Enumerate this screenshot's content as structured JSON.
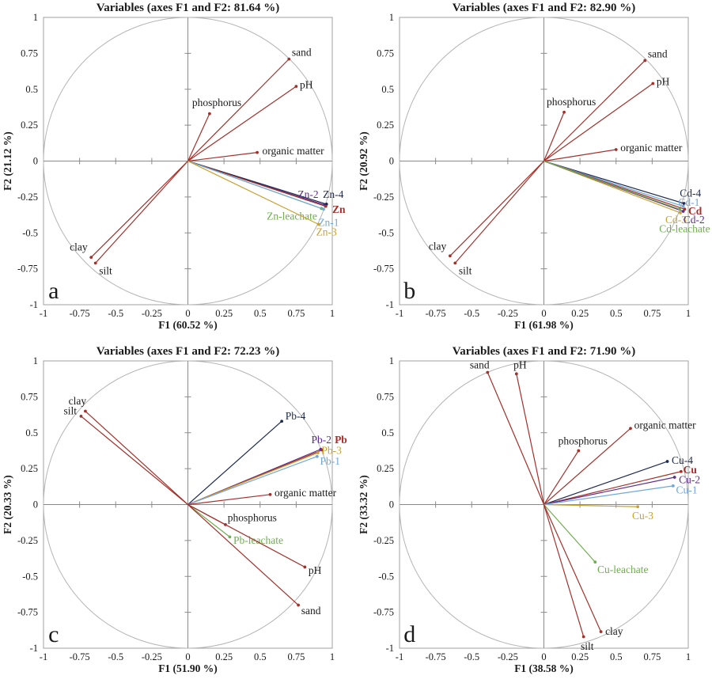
{
  "figure": {
    "description": "Four PCA variable correlation-circle plots (panels a-d) for Zn, Cd, Pb and Cu soil fractions",
    "panel_letters": [
      "a",
      "b",
      "c",
      "d"
    ]
  },
  "palette": {
    "red": "#a5302a",
    "navy": "#1c2951",
    "purple": "#5f2d8c",
    "lightblue": "#6fa8dc",
    "gold": "#c9a22e",
    "green": "#6fad4f",
    "text": "#1a1a1a",
    "circle": "#b5b5b5",
    "axis": "#8a8a8a",
    "border": "#a0a0a0"
  },
  "axis": {
    "range": [
      -1,
      1
    ],
    "ticks": [
      -1,
      -0.75,
      -0.5,
      -0.25,
      0,
      0.25,
      0.5,
      0.75,
      1
    ]
  },
  "chart_data": [
    {
      "type": "scatter",
      "panel": "a",
      "title": "Variables (axes F1 and F2: 81.64 %)",
      "xlabel": "F1 (60.52 %)",
      "ylabel": "F2 (21.12 %)",
      "xlim": [
        -1,
        1
      ],
      "ylim": [
        -1,
        1
      ],
      "vectors": [
        {
          "label": "sand",
          "x": 0.7,
          "y": 0.71,
          "color": "red",
          "tcolor": "text",
          "lx": 0.72,
          "ly": 0.755,
          "anchor": "start"
        },
        {
          "label": "pH",
          "x": 0.75,
          "y": 0.52,
          "color": "red",
          "tcolor": "text",
          "lx": 0.775,
          "ly": 0.53,
          "anchor": "start"
        },
        {
          "label": "phosphorus",
          "x": 0.15,
          "y": 0.33,
          "color": "red",
          "tcolor": "text",
          "lx": 0.2,
          "ly": 0.405,
          "anchor": "middle"
        },
        {
          "label": "organic matter",
          "x": 0.48,
          "y": 0.06,
          "color": "red",
          "tcolor": "text",
          "lx": 0.515,
          "ly": 0.07,
          "anchor": "start"
        },
        {
          "label": "clay",
          "x": -0.67,
          "y": -0.67,
          "color": "red",
          "tcolor": "text",
          "lx": -0.695,
          "ly": -0.6,
          "anchor": "end"
        },
        {
          "label": "silt",
          "x": -0.64,
          "y": -0.71,
          "color": "red",
          "tcolor": "text",
          "lx": -0.615,
          "ly": -0.765,
          "anchor": "start"
        },
        {
          "label": "Zn-2",
          "x": 0.945,
          "y": -0.305,
          "color": "purple",
          "lx": 0.905,
          "ly": -0.235,
          "anchor": "end"
        },
        {
          "label": "Zn-4",
          "x": 0.96,
          "y": -0.3,
          "color": "navy",
          "lx": 0.935,
          "ly": -0.235,
          "anchor": "start"
        },
        {
          "label": "Zn",
          "x": 0.955,
          "y": -0.315,
          "color": "red",
          "bold": true,
          "lx": 1.0,
          "ly": -0.34,
          "anchor": "start"
        },
        {
          "label": "Zn-leachate",
          "x": 0.925,
          "y": -0.33,
          "color": "green",
          "lx": 0.895,
          "ly": -0.385,
          "anchor": "end"
        },
        {
          "label": "Zn-1",
          "x": 0.94,
          "y": -0.335,
          "color": "lightblue",
          "lx": 0.975,
          "ly": -0.43,
          "anchor": "middle"
        },
        {
          "label": "Zn-3",
          "x": 0.905,
          "y": -0.44,
          "color": "gold",
          "lx": 0.96,
          "ly": -0.495,
          "anchor": "middle"
        }
      ]
    },
    {
      "type": "scatter",
      "panel": "b",
      "title": "Variables (axes F1 and F2: 82.90 %)",
      "xlabel": "F1 (61.98 %)",
      "ylabel": "F2 (20.92 %)",
      "xlim": [
        -1,
        1
      ],
      "ylim": [
        -1,
        1
      ],
      "vectors": [
        {
          "label": "sand",
          "x": 0.7,
          "y": 0.7,
          "color": "red",
          "tcolor": "text",
          "lx": 0.72,
          "ly": 0.745,
          "anchor": "start"
        },
        {
          "label": "pH",
          "x": 0.755,
          "y": 0.54,
          "color": "red",
          "tcolor": "text",
          "lx": 0.78,
          "ly": 0.55,
          "anchor": "start"
        },
        {
          "label": "phosphorus",
          "x": 0.14,
          "y": 0.34,
          "color": "red",
          "tcolor": "text",
          "lx": 0.19,
          "ly": 0.41,
          "anchor": "middle"
        },
        {
          "label": "organic matter",
          "x": 0.5,
          "y": 0.08,
          "color": "red",
          "tcolor": "text",
          "lx": 0.53,
          "ly": 0.09,
          "anchor": "start"
        },
        {
          "label": "clay",
          "x": -0.65,
          "y": -0.66,
          "color": "red",
          "tcolor": "text",
          "lx": -0.675,
          "ly": -0.595,
          "anchor": "end"
        },
        {
          "label": "silt",
          "x": -0.615,
          "y": -0.71,
          "color": "red",
          "tcolor": "text",
          "lx": -0.59,
          "ly": -0.765,
          "anchor": "start"
        },
        {
          "label": "Cd-4",
          "x": 0.97,
          "y": -0.295,
          "color": "navy",
          "lx": 1.015,
          "ly": -0.225,
          "anchor": "middle"
        },
        {
          "label": "Cd-1",
          "x": 0.965,
          "y": -0.315,
          "color": "lightblue",
          "lx": 1.005,
          "ly": -0.29,
          "anchor": "middle"
        },
        {
          "label": "Cd",
          "x": 0.975,
          "y": -0.335,
          "color": "red",
          "bold": true,
          "lx": 1.0,
          "ly": -0.35,
          "anchor": "start"
        },
        {
          "label": "Cd-3",
          "x": 0.945,
          "y": -0.36,
          "color": "gold",
          "lx": 0.915,
          "ly": -0.41,
          "anchor": "middle"
        },
        {
          "label": "Cd-2",
          "x": 0.965,
          "y": -0.35,
          "color": "purple",
          "lx": 1.04,
          "ly": -0.41,
          "anchor": "middle"
        },
        {
          "label": "Cd-leachate",
          "x": 0.94,
          "y": -0.335,
          "color": "green",
          "lx": 0.975,
          "ly": -0.475,
          "anchor": "middle"
        }
      ]
    },
    {
      "type": "scatter",
      "panel": "c",
      "title": "Variables (axes F1 and F2: 72.23 %)",
      "xlabel": "F1 (51.90 %)",
      "ylabel": "F2 (20.33 %)",
      "xlim": [
        -1,
        1
      ],
      "ylim": [
        -1,
        1
      ],
      "vectors": [
        {
          "label": "clay",
          "x": -0.71,
          "y": 0.65,
          "color": "red",
          "tcolor": "text",
          "lx": -0.765,
          "ly": 0.72,
          "anchor": "middle"
        },
        {
          "label": "silt",
          "x": -0.74,
          "y": 0.615,
          "color": "red",
          "tcolor": "text",
          "lx": -0.815,
          "ly": 0.65,
          "anchor": "middle"
        },
        {
          "label": "Pb-4",
          "x": 0.65,
          "y": 0.58,
          "color": "navy",
          "lx": 0.745,
          "ly": 0.615,
          "anchor": "middle"
        },
        {
          "label": "Pb-2",
          "x": 0.92,
          "y": 0.385,
          "color": "purple",
          "lx": 0.925,
          "ly": 0.45,
          "anchor": "middle"
        },
        {
          "label": "Pb",
          "x": 0.93,
          "y": 0.38,
          "color": "red",
          "bold": true,
          "lx": 1.06,
          "ly": 0.45,
          "anchor": "middle"
        },
        {
          "label": "Pb-3",
          "x": 0.9,
          "y": 0.36,
          "color": "gold",
          "lx": 0.995,
          "ly": 0.375,
          "anchor": "middle"
        },
        {
          "label": "Pb-1",
          "x": 0.895,
          "y": 0.335,
          "color": "lightblue",
          "lx": 0.985,
          "ly": 0.3,
          "anchor": "middle"
        },
        {
          "label": "organic matter",
          "x": 0.57,
          "y": 0.07,
          "color": "red",
          "tcolor": "text",
          "lx": 0.6,
          "ly": 0.08,
          "anchor": "start"
        },
        {
          "label": "phosphorus",
          "x": 0.26,
          "y": -0.14,
          "color": "red",
          "tcolor": "text",
          "lx": 0.275,
          "ly": -0.095,
          "anchor": "start"
        },
        {
          "label": "Pb-leachate",
          "x": 0.29,
          "y": -0.225,
          "color": "green",
          "lx": 0.315,
          "ly": -0.25,
          "anchor": "start"
        },
        {
          "label": "pH",
          "x": 0.81,
          "y": -0.435,
          "color": "red",
          "tcolor": "text",
          "lx": 0.835,
          "ly": -0.46,
          "anchor": "start"
        },
        {
          "label": "sand",
          "x": 0.765,
          "y": -0.7,
          "color": "red",
          "tcolor": "text",
          "lx": 0.785,
          "ly": -0.74,
          "anchor": "start"
        }
      ]
    },
    {
      "type": "scatter",
      "panel": "d",
      "title": "Variables (axes F1 and F2: 71.90 %)",
      "xlabel": "F1 (38.58 %)",
      "ylabel": "F2 (33.32 %)",
      "xlim": [
        -1,
        1
      ],
      "ylim": [
        -1,
        1
      ],
      "vectors": [
        {
          "label": "sand",
          "x": -0.39,
          "y": 0.92,
          "color": "red",
          "tcolor": "text",
          "lx": -0.445,
          "ly": 0.97,
          "anchor": "middle"
        },
        {
          "label": "pH",
          "x": -0.19,
          "y": 0.91,
          "color": "red",
          "tcolor": "text",
          "lx": -0.165,
          "ly": 0.97,
          "anchor": "middle"
        },
        {
          "label": "phosphorus",
          "x": 0.24,
          "y": 0.375,
          "color": "red",
          "tcolor": "text",
          "lx": 0.27,
          "ly": 0.44,
          "anchor": "middle"
        },
        {
          "label": "organic matter",
          "x": 0.6,
          "y": 0.53,
          "color": "red",
          "tcolor": "text",
          "lx": 0.625,
          "ly": 0.55,
          "anchor": "start"
        },
        {
          "label": "Cu-4",
          "x": 0.855,
          "y": 0.3,
          "color": "navy",
          "lx": 0.885,
          "ly": 0.305,
          "anchor": "start"
        },
        {
          "label": "Cu",
          "x": 0.95,
          "y": 0.23,
          "color": "red",
          "bold": true,
          "lx": 0.965,
          "ly": 0.24,
          "anchor": "start"
        },
        {
          "label": "Cu-2",
          "x": 0.905,
          "y": 0.19,
          "color": "purple",
          "lx": 0.935,
          "ly": 0.17,
          "anchor": "start"
        },
        {
          "label": "Cu-1",
          "x": 0.895,
          "y": 0.13,
          "color": "lightblue",
          "lx": 0.915,
          "ly": 0.1,
          "anchor": "start"
        },
        {
          "label": "Cu-3",
          "x": 0.65,
          "y": -0.015,
          "color": "gold",
          "lx": 0.685,
          "ly": -0.08,
          "anchor": "middle"
        },
        {
          "label": "Cu-leachate",
          "x": 0.355,
          "y": -0.4,
          "color": "green",
          "lx": 0.37,
          "ly": -0.455,
          "anchor": "start"
        },
        {
          "label": "clay",
          "x": 0.395,
          "y": -0.885,
          "color": "red",
          "tcolor": "text",
          "lx": 0.425,
          "ly": -0.885,
          "anchor": "start"
        },
        {
          "label": "silt",
          "x": 0.275,
          "y": -0.92,
          "color": "red",
          "tcolor": "text",
          "lx": 0.3,
          "ly": -0.99,
          "anchor": "middle"
        }
      ]
    }
  ]
}
